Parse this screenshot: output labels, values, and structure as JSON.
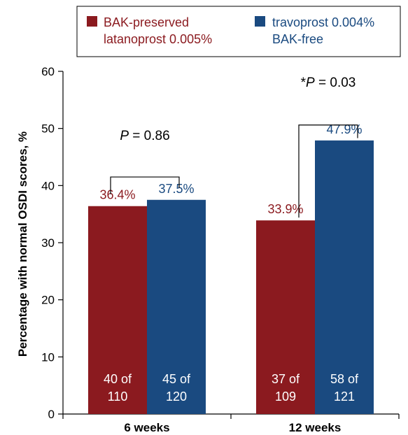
{
  "colors": {
    "series1": "#8b1a1f",
    "series2": "#1a4a80",
    "axis": "#000000"
  },
  "legend": {
    "entries": [
      {
        "line1": "BAK-preserved",
        "line2": "latanoprost 0.005%"
      },
      {
        "line1": "travoprost 0.004%",
        "line2": "BAK-free"
      }
    ]
  },
  "chart_data": {
    "type": "bar",
    "ylabel": "Percentage with normal OSDI scores, %",
    "xlabel": "",
    "ylim": [
      0,
      60
    ],
    "yticks": [
      0,
      10,
      20,
      30,
      40,
      50,
      60
    ],
    "categories": [
      "6 weeks",
      "12 weeks"
    ],
    "series": [
      {
        "name": "BAK-preserved latanoprost 0.005%",
        "values": [
          36.4,
          33.9
        ],
        "value_labels": [
          "36.4%",
          "33.9%"
        ],
        "count_labels": [
          [
            "40 of",
            "110"
          ],
          [
            "37 of",
            "109"
          ]
        ]
      },
      {
        "name": "travoprost 0.004% BAK-free",
        "values": [
          37.5,
          47.9
        ],
        "value_labels": [
          "37.5%",
          "47.9%"
        ],
        "count_labels": [
          [
            "45 of",
            "120"
          ],
          [
            "58 of",
            "121"
          ]
        ]
      }
    ],
    "annotations": [
      {
        "prefix": "",
        "italic": "P",
        "suffix": " = 0.86"
      },
      {
        "prefix": "*",
        "italic": "P",
        "suffix": " = 0.03"
      }
    ],
    "legend_position": "top-right",
    "grid": false
  }
}
